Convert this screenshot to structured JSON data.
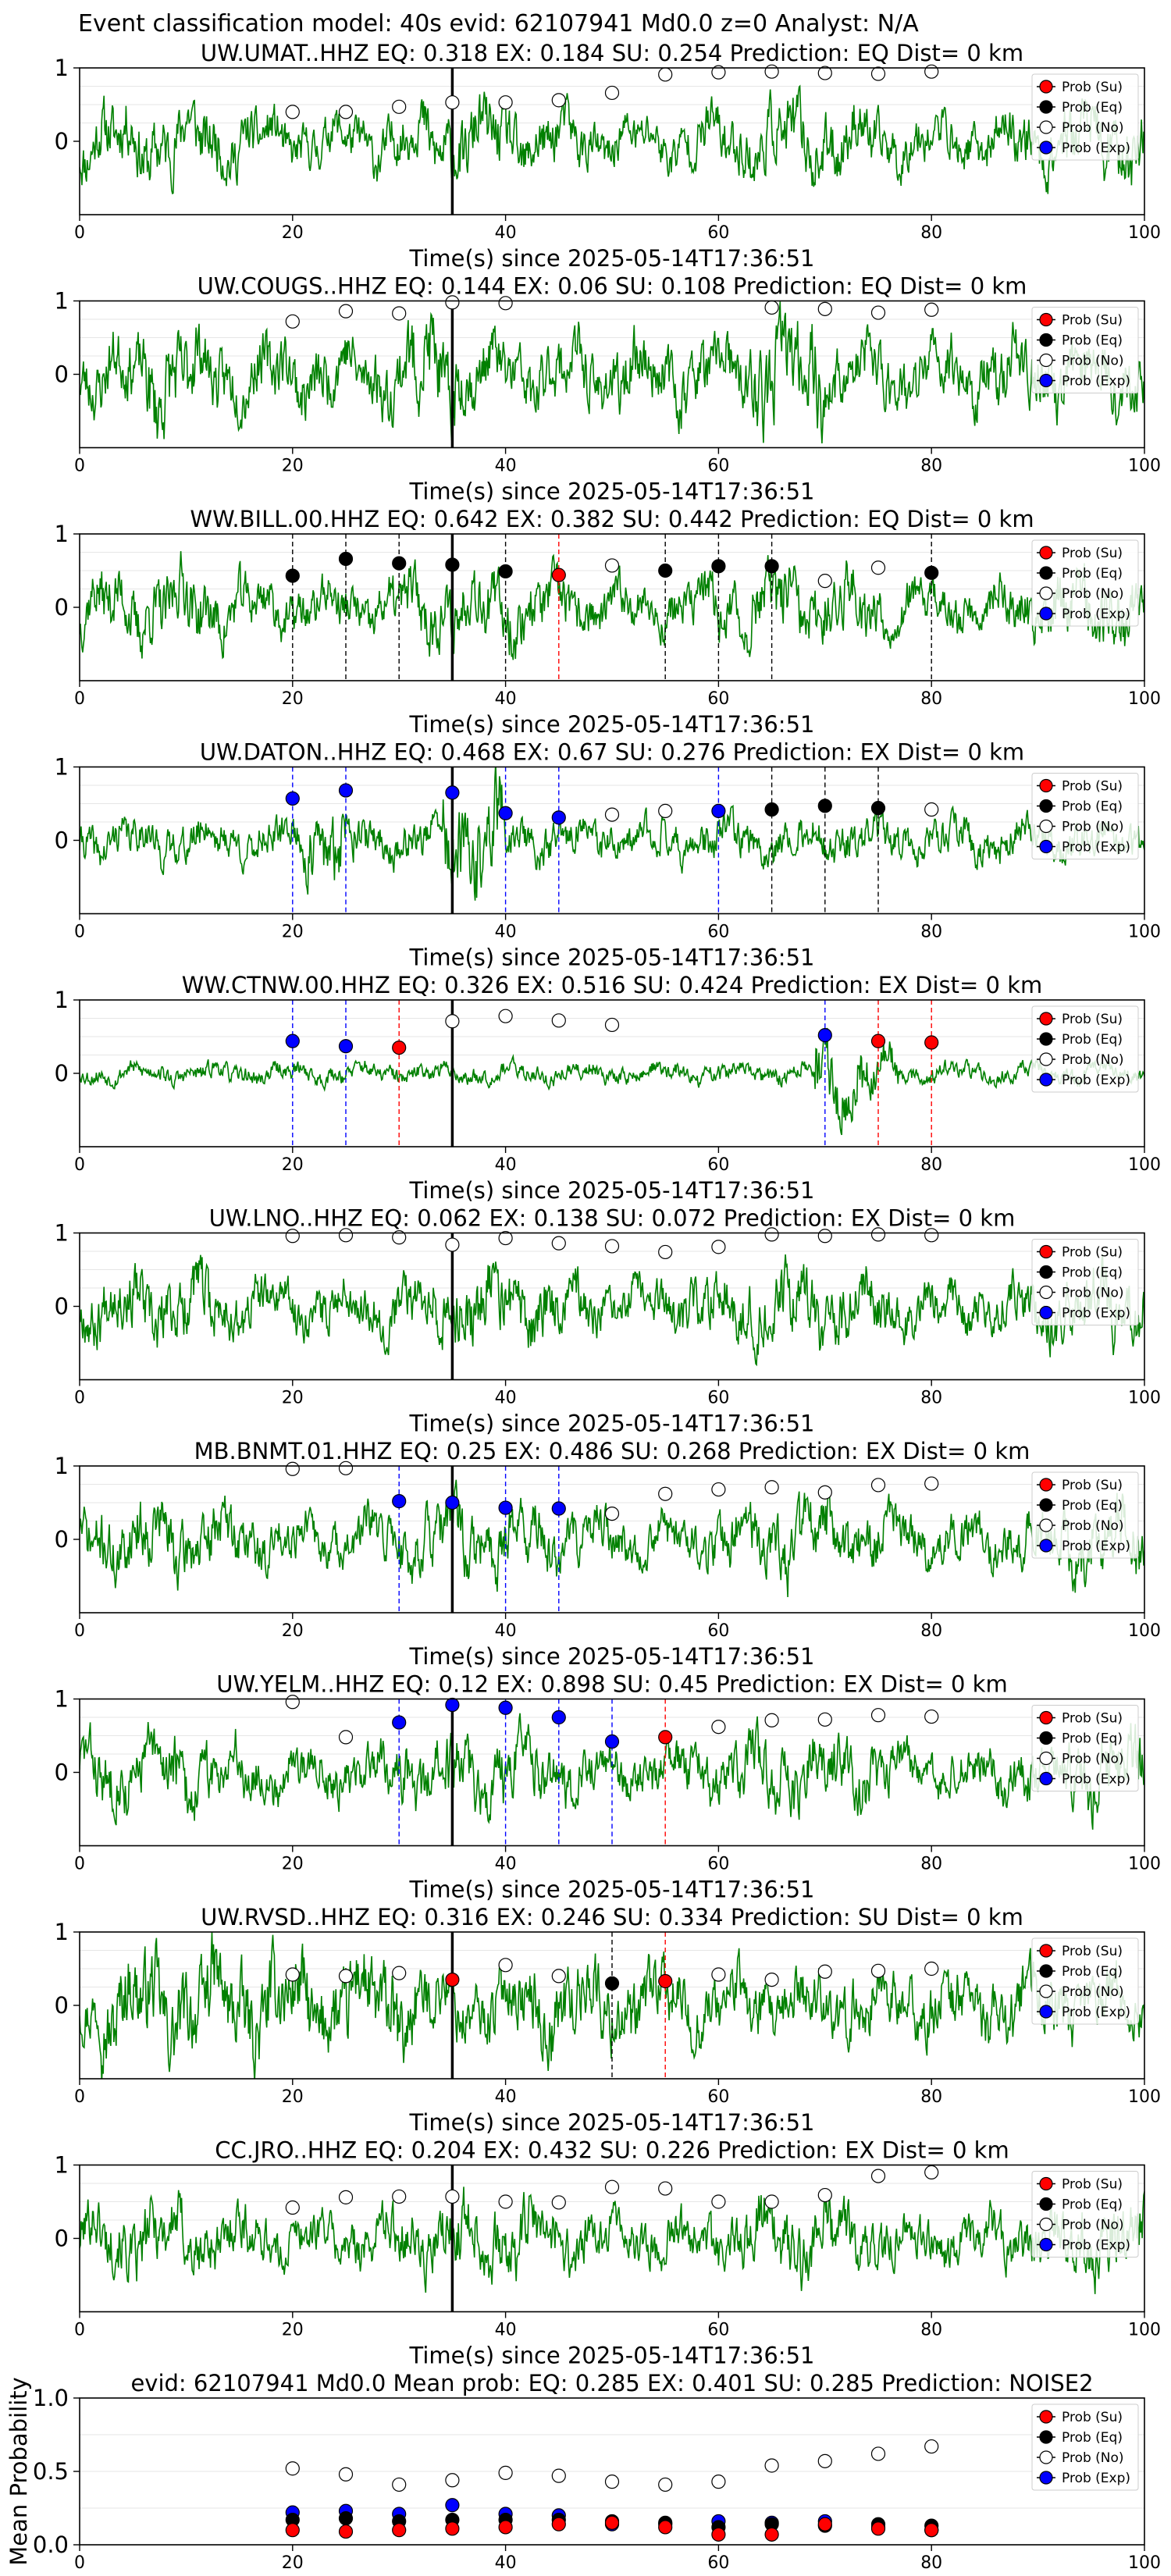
{
  "figure_title": "Event classification model: 40s evid: 62107941 Md0.0 z=0 Analyst: N/A",
  "legend_labels": [
    "Prob (Su)",
    "Prob (Eq)",
    "Prob (No)",
    "Prob (Exp)"
  ],
  "colors": {
    "waveform": "#008000",
    "su": "#ff0000",
    "eq": "#000000",
    "no": "#ffffff",
    "exp": "#0000ff",
    "origin_line": "#000000"
  },
  "chart_data": [
    {
      "type": "line",
      "title": "UW.UMAT..HHZ   EQ: 0.318  EX: 0.184  SU: 0.254   Prediction: EQ    Dist= 0 km",
      "xlabel": "Time(s) since 2025-05-14T17:36:51",
      "ylabel": "",
      "xlim": [
        0,
        100
      ],
      "ylim": [
        -1,
        1
      ],
      "xticks": [
        0,
        20,
        40,
        60,
        80,
        100
      ],
      "yticks": [
        0,
        1
      ],
      "origin_time": 35,
      "seed": 11,
      "waveform_style": "steady",
      "points": [
        [
          20,
          0.4,
          "no"
        ],
        [
          25,
          0.4,
          "no"
        ],
        [
          30,
          0.47,
          "no"
        ],
        [
          35,
          0.53,
          "no"
        ],
        [
          40,
          0.53,
          "no"
        ],
        [
          45,
          0.56,
          "no"
        ],
        [
          50,
          0.66,
          "no"
        ],
        [
          55,
          0.91,
          "no"
        ],
        [
          60,
          0.94,
          "no"
        ],
        [
          65,
          0.95,
          "no"
        ],
        [
          70,
          0.93,
          "no"
        ],
        [
          75,
          0.92,
          "no"
        ],
        [
          80,
          0.95,
          "no"
        ]
      ],
      "dashed": []
    },
    {
      "type": "line",
      "title": "UW.COUGS..HHZ   EQ: 0.144  EX: 0.06  SU: 0.108   Prediction: EQ    Dist= 0 km",
      "xlabel": "Time(s) since 2025-05-14T17:36:51",
      "ylabel": "",
      "xlim": [
        0,
        100
      ],
      "ylim": [
        -1,
        1
      ],
      "xticks": [
        0,
        20,
        40,
        60,
        80,
        100
      ],
      "yticks": [
        0,
        1
      ],
      "origin_time": 35,
      "seed": 23,
      "waveform_style": "bursts",
      "points": [
        [
          20,
          0.72,
          "no"
        ],
        [
          25,
          0.86,
          "no"
        ],
        [
          30,
          0.83,
          "no"
        ],
        [
          35,
          0.98,
          "no"
        ],
        [
          40,
          0.97,
          "no"
        ],
        [
          65,
          0.91,
          "no"
        ],
        [
          70,
          0.89,
          "no"
        ],
        [
          75,
          0.84,
          "no"
        ],
        [
          80,
          0.88,
          "no"
        ]
      ],
      "dashed": []
    },
    {
      "type": "line",
      "title": "WW.BILL.00.HHZ   EQ: 0.642  EX: 0.382  SU: 0.442   Prediction: EQ    Dist= 0 km",
      "xlabel": "Time(s) since 2025-05-14T17:36:51",
      "ylabel": "",
      "xlim": [
        0,
        100
      ],
      "ylim": [
        -1,
        1
      ],
      "xticks": [
        0,
        20,
        40,
        60,
        80,
        100
      ],
      "yticks": [
        0,
        1
      ],
      "origin_time": 35,
      "seed": 37,
      "waveform_style": "steady",
      "points": [
        [
          20,
          0.43,
          "eq"
        ],
        [
          25,
          0.66,
          "eq"
        ],
        [
          30,
          0.6,
          "eq"
        ],
        [
          35,
          0.58,
          "eq"
        ],
        [
          40,
          0.49,
          "eq"
        ],
        [
          45,
          0.44,
          "su"
        ],
        [
          50,
          0.57,
          "no"
        ],
        [
          55,
          0.5,
          "eq"
        ],
        [
          60,
          0.56,
          "eq"
        ],
        [
          65,
          0.56,
          "eq"
        ],
        [
          70,
          0.36,
          "no"
        ],
        [
          75,
          0.54,
          "no"
        ],
        [
          80,
          0.47,
          "eq"
        ]
      ],
      "dashed": [
        [
          20,
          "eq"
        ],
        [
          25,
          "eq"
        ],
        [
          30,
          "eq"
        ],
        [
          35,
          "eq"
        ],
        [
          40,
          "eq"
        ],
        [
          45,
          "su"
        ],
        [
          55,
          "eq"
        ],
        [
          60,
          "eq"
        ],
        [
          65,
          "eq"
        ],
        [
          80,
          "eq"
        ]
      ]
    },
    {
      "type": "line",
      "title": "UW.DATON..HHZ   EQ: 0.468  EX: 0.67  SU: 0.276   Prediction: EX    Dist= 0 km",
      "xlabel": "Time(s) since 2025-05-14T17:36:51",
      "ylabel": "",
      "xlim": [
        0,
        100
      ],
      "ylim": [
        -1,
        1
      ],
      "xticks": [
        0,
        20,
        40,
        60,
        80,
        100
      ],
      "yticks": [
        0,
        1
      ],
      "origin_time": 35,
      "seed": 41,
      "waveform_style": "event",
      "points": [
        [
          20,
          0.57,
          "exp"
        ],
        [
          25,
          0.68,
          "exp"
        ],
        [
          35,
          0.65,
          "exp"
        ],
        [
          40,
          0.37,
          "exp"
        ],
        [
          45,
          0.31,
          "exp"
        ],
        [
          50,
          0.35,
          "no"
        ],
        [
          55,
          0.4,
          "no"
        ],
        [
          60,
          0.4,
          "exp"
        ],
        [
          65,
          0.42,
          "eq"
        ],
        [
          70,
          0.47,
          "eq"
        ],
        [
          75,
          0.44,
          "eq"
        ],
        [
          80,
          0.42,
          "no"
        ]
      ],
      "dashed": [
        [
          20,
          "exp"
        ],
        [
          25,
          "exp"
        ],
        [
          40,
          "exp"
        ],
        [
          45,
          "exp"
        ],
        [
          60,
          "exp"
        ],
        [
          65,
          "eq"
        ],
        [
          70,
          "eq"
        ],
        [
          75,
          "eq"
        ]
      ]
    },
    {
      "type": "line",
      "title": "WW.CTNW.00.HHZ   EQ: 0.326  EX: 0.516  SU: 0.424   Prediction: EX    Dist= 0 km",
      "xlabel": "Time(s) since 2025-05-14T17:36:51",
      "ylabel": "",
      "xlim": [
        0,
        100
      ],
      "ylim": [
        -1,
        1
      ],
      "xticks": [
        0,
        20,
        40,
        60,
        80,
        100
      ],
      "yticks": [
        0,
        1
      ],
      "origin_time": 35,
      "seed": 53,
      "waveform_style": "late",
      "points": [
        [
          20,
          0.44,
          "exp"
        ],
        [
          25,
          0.37,
          "exp"
        ],
        [
          30,
          0.35,
          "su"
        ],
        [
          35,
          0.71,
          "no"
        ],
        [
          40,
          0.78,
          "no"
        ],
        [
          45,
          0.72,
          "no"
        ],
        [
          50,
          0.66,
          "no"
        ],
        [
          70,
          0.52,
          "exp"
        ],
        [
          75,
          0.44,
          "su"
        ],
        [
          80,
          0.42,
          "su"
        ]
      ],
      "dashed": [
        [
          20,
          "exp"
        ],
        [
          25,
          "exp"
        ],
        [
          30,
          "su"
        ],
        [
          70,
          "exp"
        ],
        [
          75,
          "su"
        ],
        [
          80,
          "su"
        ]
      ]
    },
    {
      "type": "line",
      "title": "UW.LNO..HHZ   EQ: 0.062  EX: 0.138  SU: 0.072   Prediction: EX    Dist= 0 km",
      "xlabel": "Time(s) since 2025-05-14T17:36:51",
      "ylabel": "",
      "xlim": [
        0,
        100
      ],
      "ylim": [
        -1,
        1
      ],
      "xticks": [
        0,
        20,
        40,
        60,
        80,
        100
      ],
      "yticks": [
        0,
        1
      ],
      "origin_time": 35,
      "seed": 67,
      "waveform_style": "steady",
      "points": [
        [
          20,
          0.96,
          "no"
        ],
        [
          25,
          0.97,
          "no"
        ],
        [
          30,
          0.94,
          "no"
        ],
        [
          35,
          0.84,
          "no"
        ],
        [
          40,
          0.93,
          "no"
        ],
        [
          45,
          0.86,
          "no"
        ],
        [
          50,
          0.82,
          "no"
        ],
        [
          55,
          0.74,
          "no"
        ],
        [
          60,
          0.81,
          "no"
        ],
        [
          65,
          0.98,
          "no"
        ],
        [
          70,
          0.96,
          "no"
        ],
        [
          75,
          0.98,
          "no"
        ],
        [
          80,
          0.97,
          "no"
        ]
      ],
      "dashed": []
    },
    {
      "type": "line",
      "title": "MB.BNMT.01.HHZ   EQ: 0.25  EX: 0.486  SU: 0.268   Prediction: EX    Dist= 0 km",
      "xlabel": "Time(s) since 2025-05-14T17:36:51",
      "ylabel": "",
      "xlim": [
        0,
        100
      ],
      "ylim": [
        -1,
        1
      ],
      "xticks": [
        0,
        20,
        40,
        60,
        80,
        100
      ],
      "yticks": [
        0,
        1
      ],
      "origin_time": 35,
      "seed": 71,
      "waveform_style": "steady",
      "points": [
        [
          20,
          0.96,
          "no"
        ],
        [
          25,
          0.97,
          "no"
        ],
        [
          30,
          0.52,
          "exp"
        ],
        [
          35,
          0.5,
          "exp"
        ],
        [
          40,
          0.43,
          "exp"
        ],
        [
          45,
          0.42,
          "exp"
        ],
        [
          50,
          0.35,
          "no"
        ],
        [
          55,
          0.62,
          "no"
        ],
        [
          60,
          0.68,
          "no"
        ],
        [
          65,
          0.71,
          "no"
        ],
        [
          70,
          0.64,
          "no"
        ],
        [
          75,
          0.74,
          "no"
        ],
        [
          80,
          0.76,
          "no"
        ]
      ],
      "dashed": [
        [
          30,
          "exp"
        ],
        [
          40,
          "exp"
        ],
        [
          45,
          "exp"
        ]
      ]
    },
    {
      "type": "line",
      "title": "UW.YELM..HHZ   EQ: 0.12  EX: 0.898  SU: 0.45   Prediction: EX    Dist= 0 km",
      "xlabel": "Time(s) since 2025-05-14T17:36:51",
      "ylabel": "",
      "xlim": [
        0,
        100
      ],
      "ylim": [
        -1,
        1
      ],
      "xticks": [
        0,
        20,
        40,
        60,
        80,
        100
      ],
      "yticks": [
        0,
        1
      ],
      "origin_time": 35,
      "seed": 83,
      "waveform_style": "steady",
      "points": [
        [
          20,
          0.96,
          "no"
        ],
        [
          25,
          0.48,
          "no"
        ],
        [
          30,
          0.68,
          "exp"
        ],
        [
          35,
          0.92,
          "exp"
        ],
        [
          40,
          0.88,
          "exp"
        ],
        [
          45,
          0.75,
          "exp"
        ],
        [
          50,
          0.42,
          "exp"
        ],
        [
          55,
          0.48,
          "su"
        ],
        [
          60,
          0.62,
          "no"
        ],
        [
          65,
          0.71,
          "no"
        ],
        [
          70,
          0.72,
          "no"
        ],
        [
          75,
          0.78,
          "no"
        ],
        [
          80,
          0.76,
          "no"
        ]
      ],
      "dashed": [
        [
          30,
          "exp"
        ],
        [
          40,
          "exp"
        ],
        [
          45,
          "exp"
        ],
        [
          50,
          "exp"
        ],
        [
          55,
          "su"
        ]
      ]
    },
    {
      "type": "line",
      "title": "UW.RVSD..HHZ   EQ: 0.316  EX: 0.246  SU: 0.334   Prediction: SU    Dist= 0 km",
      "xlabel": "Time(s) since 2025-05-14T17:36:51",
      "ylabel": "",
      "xlim": [
        0,
        100
      ],
      "ylim": [
        -1,
        1
      ],
      "xticks": [
        0,
        20,
        40,
        60,
        80,
        100
      ],
      "yticks": [
        0,
        1
      ],
      "origin_time": 35,
      "seed": 97,
      "waveform_style": "dense",
      "points": [
        [
          20,
          0.42,
          "no"
        ],
        [
          25,
          0.4,
          "no"
        ],
        [
          30,
          0.44,
          "no"
        ],
        [
          35,
          0.35,
          "su"
        ],
        [
          40,
          0.55,
          "no"
        ],
        [
          45,
          0.4,
          "no"
        ],
        [
          50,
          0.3,
          "eq"
        ],
        [
          55,
          0.33,
          "su"
        ],
        [
          60,
          0.42,
          "no"
        ],
        [
          65,
          0.35,
          "no"
        ],
        [
          70,
          0.46,
          "no"
        ],
        [
          75,
          0.47,
          "no"
        ],
        [
          80,
          0.5,
          "no"
        ]
      ],
      "dashed": [
        [
          50,
          "eq"
        ],
        [
          55,
          "su"
        ]
      ]
    },
    {
      "type": "line",
      "title": "CC.JRO..HHZ   EQ: 0.204  EX: 0.432  SU: 0.226   Prediction: EX    Dist= 0 km",
      "xlabel": "Time(s) since 2025-05-14T17:36:51",
      "ylabel": "",
      "xlim": [
        0,
        100
      ],
      "ylim": [
        -1,
        1
      ],
      "xticks": [
        0,
        20,
        40,
        60,
        80,
        100
      ],
      "yticks": [
        0,
        1
      ],
      "origin_time": 35,
      "seed": 101,
      "waveform_style": "steady",
      "points": [
        [
          20,
          0.42,
          "no"
        ],
        [
          25,
          0.56,
          "no"
        ],
        [
          30,
          0.57,
          "no"
        ],
        [
          35,
          0.57,
          "no"
        ],
        [
          40,
          0.5,
          "no"
        ],
        [
          45,
          0.49,
          "no"
        ],
        [
          50,
          0.7,
          "no"
        ],
        [
          55,
          0.68,
          "no"
        ],
        [
          60,
          0.5,
          "no"
        ],
        [
          65,
          0.5,
          "no"
        ],
        [
          70,
          0.59,
          "no"
        ],
        [
          75,
          0.85,
          "no"
        ],
        [
          80,
          0.9,
          "no"
        ]
      ],
      "dashed": []
    },
    {
      "type": "scatter",
      "title": "evid: 62107941  Md0.0   Mean prob:   EQ: 0.285  EX: 0.401  SU: 0.285   Prediction: NOISE2",
      "xlabel": "",
      "ylabel": "Mean Probability",
      "xlim": [
        0,
        100
      ],
      "ylim": [
        0,
        1
      ],
      "xticks": [
        0,
        20,
        40,
        60,
        80,
        100
      ],
      "yticks": [
        0.0,
        0.5,
        1.0
      ],
      "series": [
        {
          "name": "Prob (Su)",
          "key": "su",
          "x": [
            20,
            25,
            30,
            35,
            40,
            45,
            50,
            55,
            60,
            65,
            70,
            75,
            80
          ],
          "y": [
            0.1,
            0.09,
            0.1,
            0.11,
            0.12,
            0.14,
            0.15,
            0.12,
            0.07,
            0.07,
            0.14,
            0.11,
            0.1
          ]
        },
        {
          "name": "Prob (Eq)",
          "key": "eq",
          "x": [
            20,
            25,
            30,
            35,
            40,
            45,
            50,
            55,
            60,
            65,
            70,
            75,
            80
          ],
          "y": [
            0.17,
            0.18,
            0.16,
            0.17,
            0.17,
            0.17,
            0.16,
            0.15,
            0.12,
            0.14,
            0.13,
            0.14,
            0.13
          ]
        },
        {
          "name": "Prob (No)",
          "key": "no",
          "x": [
            20,
            25,
            30,
            35,
            40,
            45,
            50,
            55,
            60,
            65,
            70,
            75,
            80
          ],
          "y": [
            0.52,
            0.48,
            0.41,
            0.44,
            0.49,
            0.47,
            0.43,
            0.41,
            0.43,
            0.54,
            0.57,
            0.62,
            0.67
          ]
        },
        {
          "name": "Prob (Exp)",
          "key": "exp",
          "x": [
            20,
            25,
            30,
            35,
            40,
            45,
            50,
            55,
            60,
            65,
            70,
            75,
            80
          ],
          "y": [
            0.22,
            0.23,
            0.21,
            0.27,
            0.21,
            0.2,
            0.14,
            0.14,
            0.16,
            0.15,
            0.16,
            0.12,
            0.1
          ]
        }
      ]
    }
  ]
}
